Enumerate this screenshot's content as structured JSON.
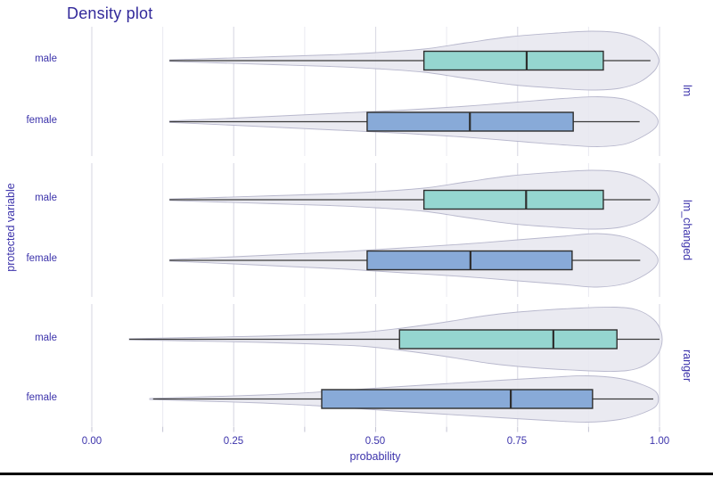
{
  "title": "Density plot",
  "colors": {
    "male_box": "#95d6d0",
    "female_box": "#88aad8",
    "violin_fill": "#e8e8ef",
    "violin_stroke": "#b8b8cd",
    "box_stroke": "#2e2e2e",
    "whisker": "#3a3a3a",
    "grid_major": "#dcdce6",
    "grid_minor": "#e9e9f1",
    "axis_tick": "#c2c2d2",
    "text": "#3c33ab",
    "title_text": "#332a9b",
    "bottom_bar": "#000000"
  },
  "chart_data": {
    "type": "violin-boxplot",
    "title": "Density plot",
    "xlabel": "probability",
    "ylabel": "protected variable",
    "xlim": [
      0,
      1
    ],
    "x_tick_labels": [
      "0.00",
      "0.25",
      "0.50",
      "0.75",
      "1.00"
    ],
    "x_tick_values": [
      0,
      0.25,
      0.5,
      0.75,
      1
    ],
    "x_minor_step": 0.125,
    "grid": true,
    "legend": "none",
    "group_labels": [
      "male",
      "female"
    ],
    "facets": [
      {
        "name": "lm",
        "rows": [
          {
            "group": "male",
            "box": {
              "min": 0.137,
              "q1": 0.585,
              "median": 0.766,
              "q3": 0.901,
              "max": 0.984
            },
            "violin_profile": [
              [
                0.137,
                0.8
              ],
              [
                0.22,
                2.5
              ],
              [
                0.32,
                4.5
              ],
              [
                0.42,
                6.5
              ],
              [
                0.5,
                9
              ],
              [
                0.585,
                13
              ],
              [
                0.66,
                20
              ],
              [
                0.74,
                27
              ],
              [
                0.82,
                31
              ],
              [
                0.88,
                33
              ],
              [
                0.93,
                31
              ],
              [
                0.965,
                24
              ],
              [
                0.99,
                12
              ],
              [
                0.998,
                3
              ]
            ]
          },
          {
            "group": "female",
            "box": {
              "min": 0.137,
              "q1": 0.485,
              "median": 0.666,
              "q3": 0.848,
              "max": 0.965
            },
            "violin_profile": [
              [
                0.137,
                0.8
              ],
              [
                0.25,
                4
              ],
              [
                0.35,
                7
              ],
              [
                0.45,
                10
              ],
              [
                0.55,
                13
              ],
              [
                0.65,
                17
              ],
              [
                0.75,
                22
              ],
              [
                0.83,
                26
              ],
              [
                0.89,
                28
              ],
              [
                0.94,
                25
              ],
              [
                0.975,
                15
              ],
              [
                0.995,
                5
              ]
            ]
          }
        ]
      },
      {
        "name": "lm_changed",
        "rows": [
          {
            "group": "male",
            "box": {
              "min": 0.137,
              "q1": 0.585,
              "median": 0.765,
              "q3": 0.901,
              "max": 0.984
            },
            "violin_profile": [
              [
                0.137,
                0.8
              ],
              [
                0.22,
                2.5
              ],
              [
                0.32,
                4.5
              ],
              [
                0.42,
                6.5
              ],
              [
                0.5,
                9
              ],
              [
                0.585,
                13
              ],
              [
                0.66,
                20
              ],
              [
                0.74,
                27
              ],
              [
                0.82,
                31
              ],
              [
                0.88,
                33
              ],
              [
                0.93,
                31
              ],
              [
                0.965,
                24
              ],
              [
                0.99,
                12
              ],
              [
                0.998,
                3
              ]
            ]
          },
          {
            "group": "female",
            "box": {
              "min": 0.137,
              "q1": 0.485,
              "median": 0.667,
              "q3": 0.846,
              "max": 0.966
            },
            "violin_profile": [
              [
                0.137,
                0.8
              ],
              [
                0.25,
                4
              ],
              [
                0.35,
                7
              ],
              [
                0.45,
                10
              ],
              [
                0.55,
                14
              ],
              [
                0.65,
                18
              ],
              [
                0.75,
                23
              ],
              [
                0.83,
                27
              ],
              [
                0.89,
                30
              ],
              [
                0.94,
                26
              ],
              [
                0.975,
                16
              ],
              [
                0.995,
                5
              ]
            ]
          }
        ]
      },
      {
        "name": "ranger",
        "rows": [
          {
            "group": "male",
            "box": {
              "min": 0.066,
              "q1": 0.542,
              "median": 0.813,
              "q3": 0.925,
              "max": 1.0
            },
            "violin_profile": [
              [
                0.066,
                0.6
              ],
              [
                0.18,
                2
              ],
              [
                0.3,
                3.5
              ],
              [
                0.4,
                5.5
              ],
              [
                0.48,
                8
              ],
              [
                0.54,
                12
              ],
              [
                0.62,
                19
              ],
              [
                0.7,
                27
              ],
              [
                0.78,
                32
              ],
              [
                0.86,
                35
              ],
              [
                0.92,
                36
              ],
              [
                0.96,
                33
              ],
              [
                0.99,
                22
              ],
              [
                1.003,
                8
              ]
            ]
          },
          {
            "group": "female",
            "box": {
              "min": 0.108,
              "q1": 0.405,
              "median": 0.738,
              "q3": 0.882,
              "max": 0.989
            },
            "violin_profile": [
              [
                0.102,
                0.6
              ],
              [
                0.2,
                2.5
              ],
              [
                0.3,
                4.5
              ],
              [
                0.38,
                7
              ],
              [
                0.45,
                10
              ],
              [
                0.52,
                13
              ],
              [
                0.62,
                17
              ],
              [
                0.72,
                21
              ],
              [
                0.8,
                24
              ],
              [
                0.87,
                26
              ],
              [
                0.93,
                23
              ],
              [
                0.97,
                16
              ],
              [
                0.995,
                7
              ]
            ]
          }
        ]
      }
    ]
  }
}
